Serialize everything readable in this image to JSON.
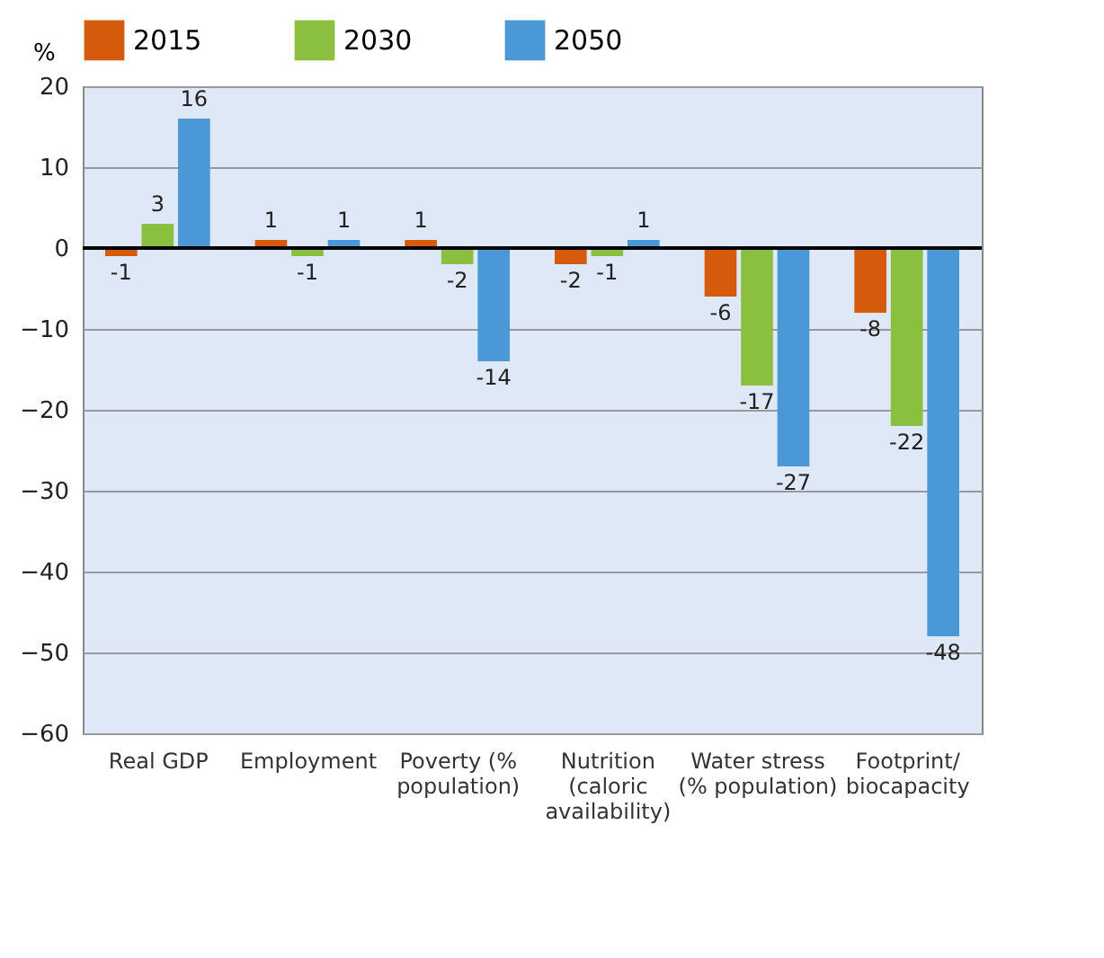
{
  "chart_data": {
    "type": "bar",
    "ylabel": "%",
    "categories": [
      "Real GDP",
      "Employment",
      "Poverty (% population)",
      "Nutrition (caloric availability)",
      "Water stress (% population)",
      "Footprint/ biocapacity"
    ],
    "series": [
      {
        "name": "2015",
        "color": "#d45a0c",
        "values": [
          -1,
          1,
          1,
          -2,
          -6,
          -8
        ]
      },
      {
        "name": "2030",
        "color": "#8bbf3f",
        "values": [
          3,
          -1,
          -2,
          -1,
          -17,
          -22
        ]
      },
      {
        "name": "2050",
        "color": "#4a98d6",
        "values": [
          16,
          1,
          -14,
          1,
          -27,
          -48
        ]
      }
    ],
    "ylim": [
      -60,
      20
    ],
    "yticks": [
      -60,
      -50,
      -40,
      -30,
      -20,
      -10,
      0,
      10,
      20
    ],
    "grid": "y",
    "legend": "top left",
    "data_labels": true
  }
}
